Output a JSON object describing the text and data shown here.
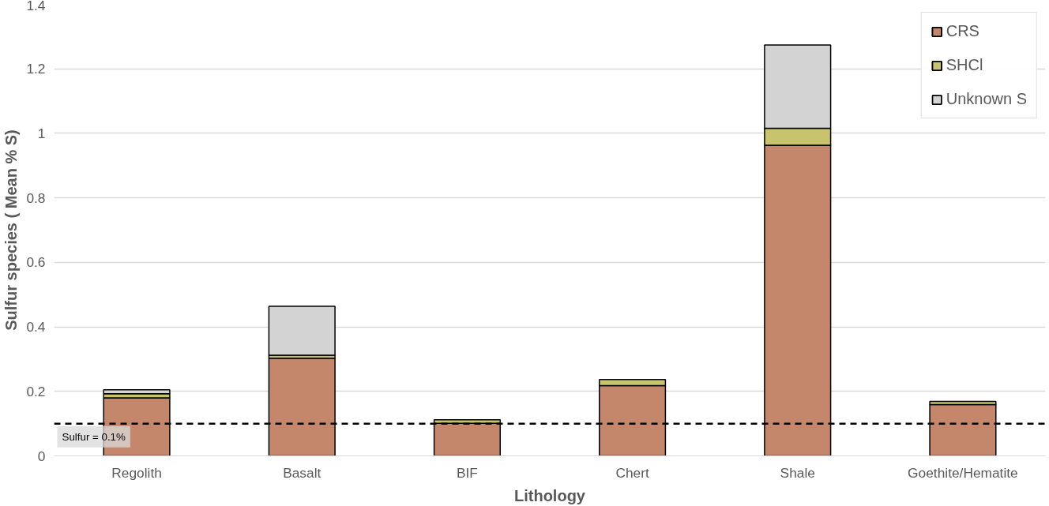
{
  "chart_data": {
    "type": "bar",
    "stacked": true,
    "xlabel": "Lithology",
    "ylabel": "Sulfur species ( Mean % S)",
    "categories": [
      "Regolith",
      "Basalt",
      "BIF",
      "Chert",
      "Shale",
      "Goethite/Hematite"
    ],
    "series": [
      {
        "name": "CRS",
        "color": "#c4876b",
        "values": [
          0.18,
          0.303,
          0.101,
          0.218,
          0.963,
          0.159
        ]
      },
      {
        "name": "SHCl",
        "color": "#c8c46e",
        "values": [
          0.013,
          0.009,
          0.011,
          0.019,
          0.053,
          0.01
        ]
      },
      {
        "name": "Unknown S",
        "color": "#d3d3d3",
        "values": [
          0.012,
          0.152,
          null,
          null,
          0.258,
          null
        ]
      }
    ],
    "ylim": [
      0,
      1.4
    ],
    "yticks": [
      0,
      0.2,
      0.4,
      0.6,
      0.8,
      1,
      1.2,
      1.4
    ],
    "grid": "y",
    "legend": "top right",
    "ref_lines": [
      {
        "axis": "y",
        "value": 0.1,
        "label": "Sulfur = 0.1%",
        "color": "#000000",
        "line_style": "dashed"
      }
    ]
  }
}
